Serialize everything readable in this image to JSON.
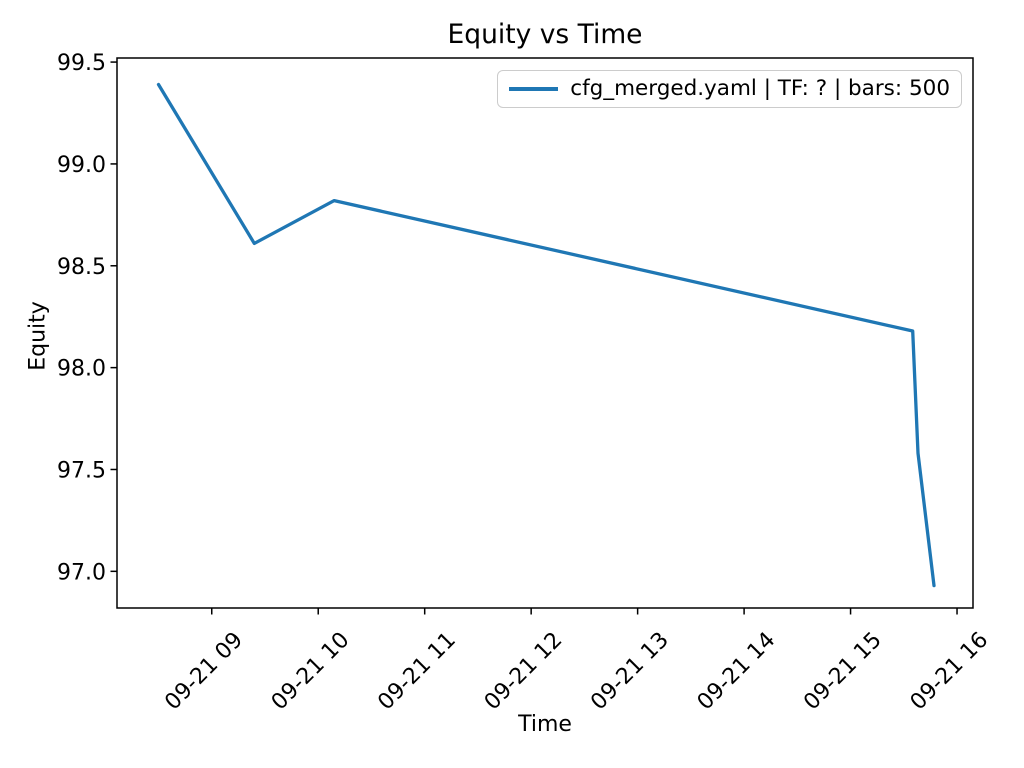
{
  "chart_data": {
    "type": "line",
    "title": "Equity vs Time",
    "xlabel": "Time",
    "ylabel": "Equity",
    "grid": false,
    "axis_color": "#000000",
    "ylim": [
      96.82,
      99.52
    ],
    "xlim_hours": [
      8.11,
      16.15
    ],
    "y_ticks": [
      99.5,
      99.0,
      98.5,
      98.0,
      97.5,
      97.0
    ],
    "y_tick_labels": [
      "99.5",
      "99.0",
      "98.5",
      "98.0",
      "97.5",
      "97.0"
    ],
    "x_tick_labels": [
      "09-21 09",
      "09-21 10",
      "09-21 11",
      "09-21 12",
      "09-21 13",
      "09-21 14",
      "09-21 15",
      "09-21 16"
    ],
    "legend": {
      "position": "upper right",
      "entries": [
        {
          "label": "cfg_merged.yaml | TF: ? | bars: 500",
          "color": "#1f77b4"
        }
      ]
    },
    "series": [
      {
        "name": "cfg_merged.yaml | TF: ? | bars: 500",
        "color": "#1f77b4",
        "line_width": 3.3,
        "points": [
          {
            "time": "09-21 08:30",
            "equity": 99.39
          },
          {
            "time": "09-21 09:24",
            "equity": 98.61
          },
          {
            "time": "09-21 10:09",
            "equity": 98.82
          },
          {
            "time": "09-21 15:35",
            "equity": 98.18
          },
          {
            "time": "09-21 15:38",
            "equity": 97.58
          },
          {
            "time": "09-21 15:47",
            "equity": 96.93
          }
        ]
      }
    ]
  }
}
